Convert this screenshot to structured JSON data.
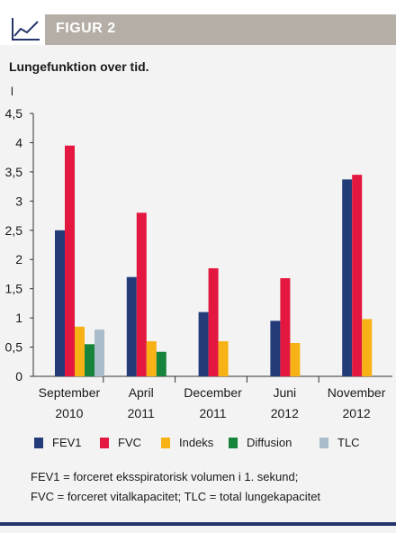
{
  "figure": {
    "label": "FIGUR 2",
    "subtitle": "Lungefunktion over tid.",
    "unit": "l"
  },
  "chart_data": {
    "type": "bar",
    "title": "",
    "ylabel": "l",
    "ylim": [
      0,
      4.5
    ],
    "yticks": [
      "0",
      "0,5",
      "1",
      "1,5",
      "2",
      "2,5",
      "3",
      "3,5",
      "4",
      "4,5"
    ],
    "ytick_values": [
      0,
      0.5,
      1,
      1.5,
      2,
      2.5,
      3,
      3.5,
      4,
      4.5
    ],
    "grid": false,
    "categories": [
      {
        "line1": "September",
        "line2": "2010"
      },
      {
        "line1": "April",
        "line2": "2011"
      },
      {
        "line1": "December",
        "line2": "2011"
      },
      {
        "line1": "Juni",
        "line2": "2012"
      },
      {
        "line1": "November",
        "line2": "2012"
      }
    ],
    "series": [
      {
        "name": "FEV1",
        "color": "#243b7a",
        "values": [
          2.5,
          1.7,
          1.1,
          0.95,
          3.37
        ]
      },
      {
        "name": "FVC",
        "color": "#e3173f",
        "values": [
          3.95,
          2.8,
          1.85,
          1.68,
          3.45
        ]
      },
      {
        "name": "Indeks",
        "color": "#f7b215",
        "values": [
          0.85,
          0.6,
          0.6,
          0.57,
          0.98
        ]
      },
      {
        "name": "Diffusion",
        "color": "#17843c",
        "values": [
          0.55,
          0.42,
          null,
          null,
          null
        ]
      },
      {
        "name": "TLC",
        "color": "#a9bccb",
        "values": [
          0.8,
          null,
          null,
          null,
          null
        ]
      }
    ],
    "legend_position": "bottom"
  },
  "footnotes": [
    "FEV1 = forceret eksspiratorisk volumen i 1. sekund;",
    "FVC = forceret vitalkapacitet; TLC = total lungekapacitet"
  ]
}
